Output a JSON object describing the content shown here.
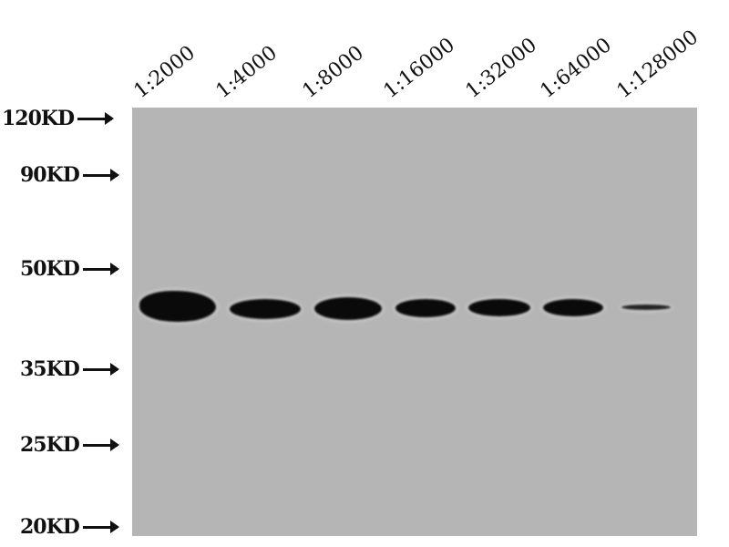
{
  "lanes": [
    "1:2000",
    "1:4000",
    "1:8000",
    "1:16000",
    "1:32000",
    "1:64000",
    "1:128000"
  ],
  "markers": [
    "120KD",
    "90KD",
    "50KD",
    "35KD",
    "25KD",
    "20KD"
  ],
  "colors": {
    "membrane": "#b5b5b5",
    "band": "#0a0a0a"
  }
}
